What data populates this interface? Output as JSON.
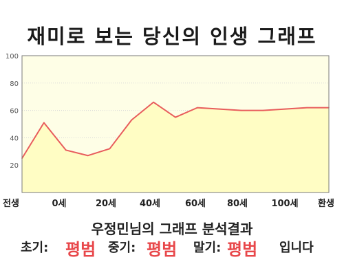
{
  "header": {
    "title": "재미로 보는 당신의 인생 그래프"
  },
  "chart_data": {
    "type": "area",
    "title": "재미로 보는 당신의 인생 그래프",
    "x": [
      0,
      1,
      2,
      3,
      4,
      5,
      6,
      7,
      8,
      9,
      10,
      11,
      12,
      13,
      14
    ],
    "values": [
      25,
      51,
      31,
      27,
      32,
      53,
      66,
      55,
      62,
      61,
      60,
      60,
      61,
      62,
      62
    ],
    "x_range": [
      0,
      14
    ],
    "ylim": [
      0,
      100
    ],
    "yticks": [
      20,
      40,
      60,
      80,
      100
    ],
    "xtick_labels": [
      "전생",
      "0세",
      "20세",
      "40세",
      "60세",
      "80세",
      "100세",
      "환생"
    ],
    "grid": true,
    "fill_color": "#fffdc4",
    "line_color": "#e85c5c",
    "plot_background": "#fefee6"
  },
  "result": {
    "subtitle": "우정민님의 그래프 분석결과",
    "early_label": "초기:",
    "early_value": "평범",
    "middle_label": "중기:",
    "middle_value": "평범",
    "late_label": "말기:",
    "late_value": "평범",
    "ending": "입니다"
  }
}
